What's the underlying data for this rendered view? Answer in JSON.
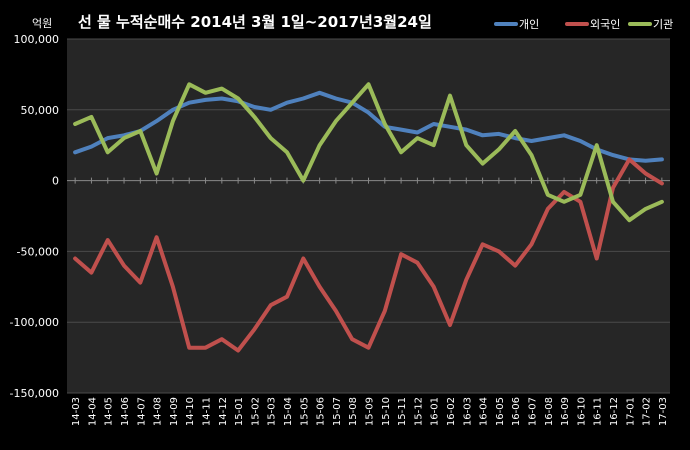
{
  "chart_data": {
    "type": "line",
    "title": "선 물 누적순매수 2014년 3월 1일~2017년3월24일",
    "unit_label": "억원",
    "ylim": [
      -150000,
      100000
    ],
    "y_ticks": [
      100000,
      50000,
      0,
      -50000,
      -100000,
      -150000
    ],
    "y_tick_labels": [
      "100,000",
      "50,000",
      "0",
      "-50,000",
      "-100,000",
      "-150,000"
    ],
    "x_tick_labels": [
      "14-03",
      "14-04",
      "14-05",
      "14-06",
      "14-07",
      "14-08",
      "14-09",
      "14-10",
      "14-11",
      "14-12",
      "15-01",
      "15-02",
      "15-03",
      "15-04",
      "15-05",
      "15-06",
      "15-07",
      "15-08",
      "15-09",
      "15-10",
      "15-11",
      "15-12",
      "16-01",
      "16-02",
      "16-03",
      "16-04",
      "16-05",
      "16-06",
      "16-07",
      "16-08",
      "16-09",
      "16-10",
      "16-11",
      "16-12",
      "17-01",
      "17-02",
      "17-03"
    ],
    "grid": true,
    "legend_position": "top-right",
    "series": [
      {
        "name": "개인",
        "color": "#4F81BD",
        "values": [
          20000,
          24000,
          30000,
          32000,
          35000,
          42000,
          50000,
          55000,
          57000,
          58000,
          56000,
          52000,
          50000,
          55000,
          58000,
          62000,
          58000,
          55000,
          48000,
          38000,
          36000,
          34000,
          40000,
          38000,
          36000,
          32000,
          33000,
          30000,
          28000,
          30000,
          32000,
          28000,
          22000,
          18000,
          15000,
          14000,
          15000
        ]
      },
      {
        "name": "외국인",
        "color": "#C0504D",
        "values": [
          -55000,
          -65000,
          -42000,
          -60000,
          -72000,
          -40000,
          -75000,
          -118000,
          -118000,
          -112000,
          -120000,
          -105000,
          -88000,
          -82000,
          -55000,
          -75000,
          -92000,
          -112000,
          -118000,
          -92000,
          -52000,
          -58000,
          -75000,
          -102000,
          -70000,
          -45000,
          -50000,
          -60000,
          -45000,
          -20000,
          -8000,
          -15000,
          -55000,
          -5000,
          15000,
          5000,
          -2000
        ]
      },
      {
        "name": "기관",
        "color": "#9BBB59",
        "values": [
          40000,
          45000,
          20000,
          30000,
          35000,
          5000,
          42000,
          68000,
          62000,
          65000,
          58000,
          45000,
          30000,
          20000,
          0,
          25000,
          42000,
          55000,
          68000,
          40000,
          20000,
          30000,
          25000,
          60000,
          25000,
          12000,
          22000,
          35000,
          18000,
          -10000,
          -15000,
          -10000,
          25000,
          -15000,
          -28000,
          -20000,
          -15000
        ]
      }
    ]
  }
}
